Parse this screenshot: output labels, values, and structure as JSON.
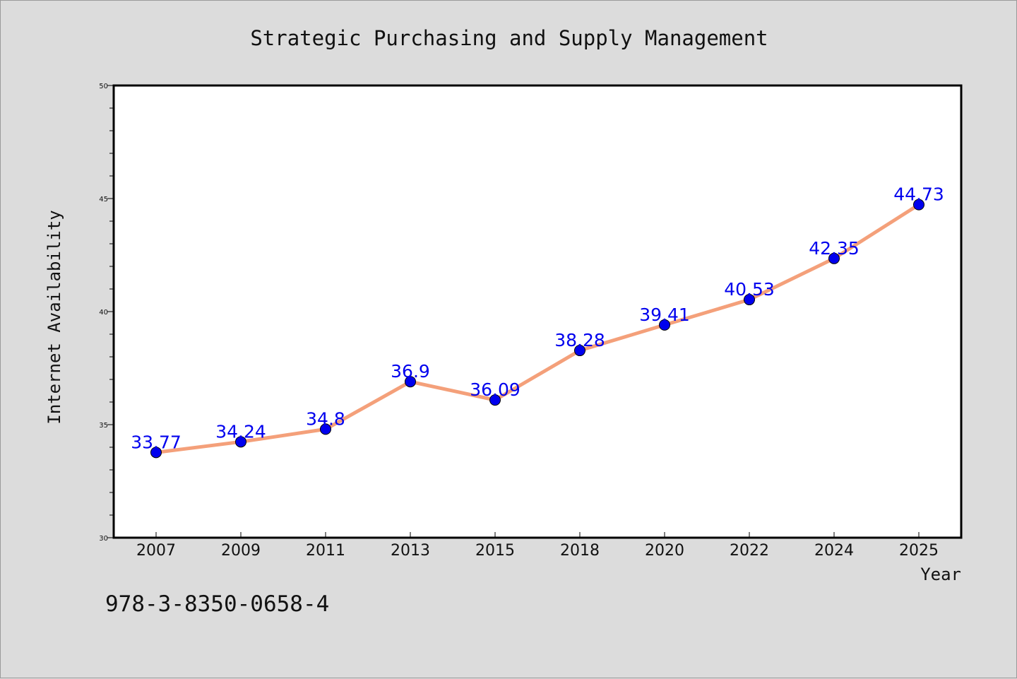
{
  "chart_data": {
    "type": "line",
    "title": "Strategic Purchasing and Supply Management",
    "xlabel": "Year",
    "ylabel": "Internet Availability",
    "categories": [
      "2007",
      "2009",
      "2011",
      "2013",
      "2015",
      "2018",
      "2020",
      "2022",
      "2024",
      "2025"
    ],
    "series": [
      {
        "values": [
          33.77,
          34.24,
          34.8,
          36.9,
          36.09,
          38.28,
          39.41,
          40.53,
          42.35,
          44.73
        ],
        "line_color": "#f4a07a",
        "marker_color": "#0000ee"
      }
    ],
    "data_labels": [
      "33.77",
      "34.24",
      "34.8",
      "36.9",
      "36.09",
      "38.28",
      "39.41",
      "40.53",
      "42.35",
      "44.73"
    ],
    "ylim": [
      30,
      50
    ],
    "yticks": [
      "30",
      "35",
      "40",
      "45",
      "50"
    ],
    "grid": false,
    "legend": "none"
  },
  "annotation": "978-3-8350-0658-4"
}
